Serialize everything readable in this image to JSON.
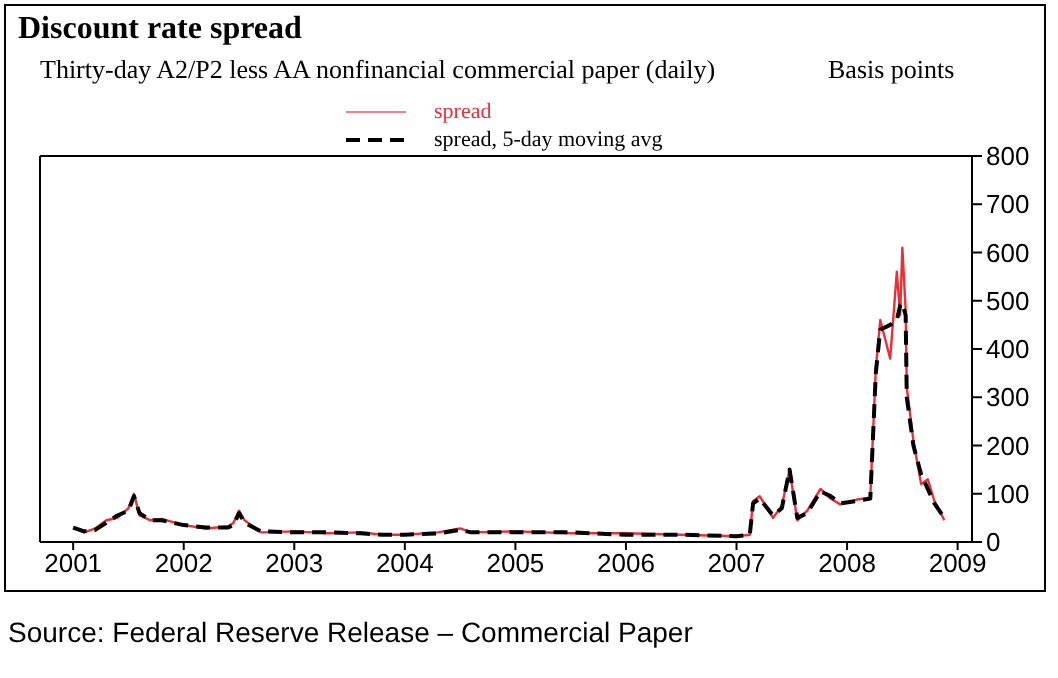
{
  "chart_data": {
    "type": "line",
    "title": "Discount rate spread",
    "subtitle": "Thirty-day A2/P2 less AA nonfinancial commercial paper (daily)",
    "ylabel": "Basis points",
    "x": [
      2001.0,
      2001.1,
      2001.2,
      2001.3,
      2001.4,
      2001.5,
      2001.55,
      2001.6,
      2001.7,
      2001.8,
      2002.0,
      2002.2,
      2002.4,
      2002.45,
      2002.5,
      2002.55,
      2002.7,
      2003.0,
      2003.3,
      2003.6,
      2003.8,
      2004.0,
      2004.3,
      2004.5,
      2004.6,
      2005.0,
      2005.5,
      2006.0,
      2006.5,
      2007.0,
      2007.12,
      2007.15,
      2007.21,
      2007.33,
      2007.41,
      2007.48,
      2007.55,
      2007.64,
      2007.76,
      2007.85,
      2007.94,
      2008.09,
      2008.21,
      2008.26,
      2008.3,
      2008.39,
      2008.45,
      2008.48,
      2008.5,
      2008.53,
      2008.54,
      2008.6,
      2008.67,
      2008.73,
      2008.79,
      2008.88
    ],
    "series": [
      {
        "name": "spread",
        "color": "#e8303a",
        "line_style": "solid",
        "values": [
          30,
          20,
          28,
          45,
          50,
          70,
          100,
          55,
          45,
          48,
          35,
          28,
          32,
          40,
          65,
          45,
          20,
          22,
          18,
          20,
          15,
          15,
          20,
          28,
          20,
          22,
          18,
          18,
          15,
          12,
          15,
          85,
          95,
          50,
          75,
          150,
          45,
          65,
          110,
          90,
          78,
          88,
          92,
          360,
          460,
          380,
          560,
          470,
          610,
          480,
          320,
          210,
          120,
          130,
          85,
          45
        ]
      },
      {
        "name": "spread, 5-day moving avg",
        "color": "#000000",
        "line_style": "dashed",
        "values": [
          30,
          22,
          25,
          40,
          55,
          65,
          95,
          60,
          45,
          45,
          35,
          30,
          30,
          35,
          60,
          40,
          22,
          20,
          20,
          18,
          15,
          15,
          18,
          25,
          20,
          20,
          20,
          15,
          15,
          12,
          15,
          80,
          90,
          55,
          70,
          150,
          50,
          60,
          105,
          95,
          80,
          85,
          90,
          350,
          440,
          450,
          460,
          490,
          495,
          470,
          300,
          200,
          140,
          110,
          80,
          50
        ]
      }
    ],
    "xlim": [
      2000.7,
      2009.13
    ],
    "xticks": [
      2001,
      2002,
      2003,
      2004,
      2005,
      2006,
      2007,
      2008,
      2009
    ],
    "ylim": [
      0,
      800
    ],
    "yticks": [
      0,
      100,
      200,
      300,
      400,
      500,
      600,
      700,
      800
    ],
    "legend": "top",
    "grid": false,
    "annotations": [
      "Source: Federal Reserve Release – Commercial Paper"
    ]
  }
}
